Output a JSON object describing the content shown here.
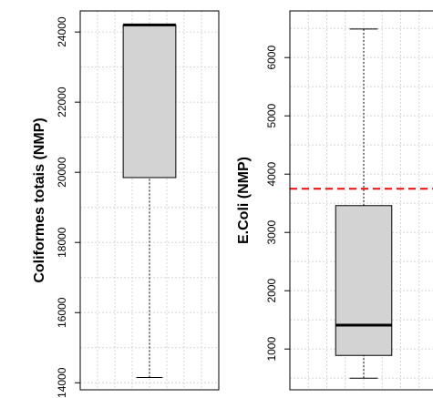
{
  "chart_data": [
    {
      "type": "box",
      "ylabel": "Coliformes totais (NMP)",
      "yticks": [
        14000,
        16000,
        18000,
        20000,
        22000,
        24000
      ],
      "ylim": [
        13800,
        24600
      ],
      "box": {
        "min": 14150,
        "q1": 19850,
        "median": 24200,
        "q3": 24200,
        "max": 24200
      },
      "grid": true,
      "fill_color": "#d3d3d3"
    },
    {
      "type": "box",
      "ylabel": "E.Coli (NMP)",
      "yticks": [
        1000,
        2000,
        3000,
        4000,
        5000,
        6000
      ],
      "ylim": [
        300,
        6800
      ],
      "box": {
        "min": 500,
        "q1": 890,
        "median": 1410,
        "q3": 3460,
        "max": 6490
      },
      "reference_line": {
        "value": 3750,
        "color": "#ff0000",
        "style": "dashed"
      },
      "grid": true,
      "fill_color": "#d3d3d3"
    }
  ]
}
